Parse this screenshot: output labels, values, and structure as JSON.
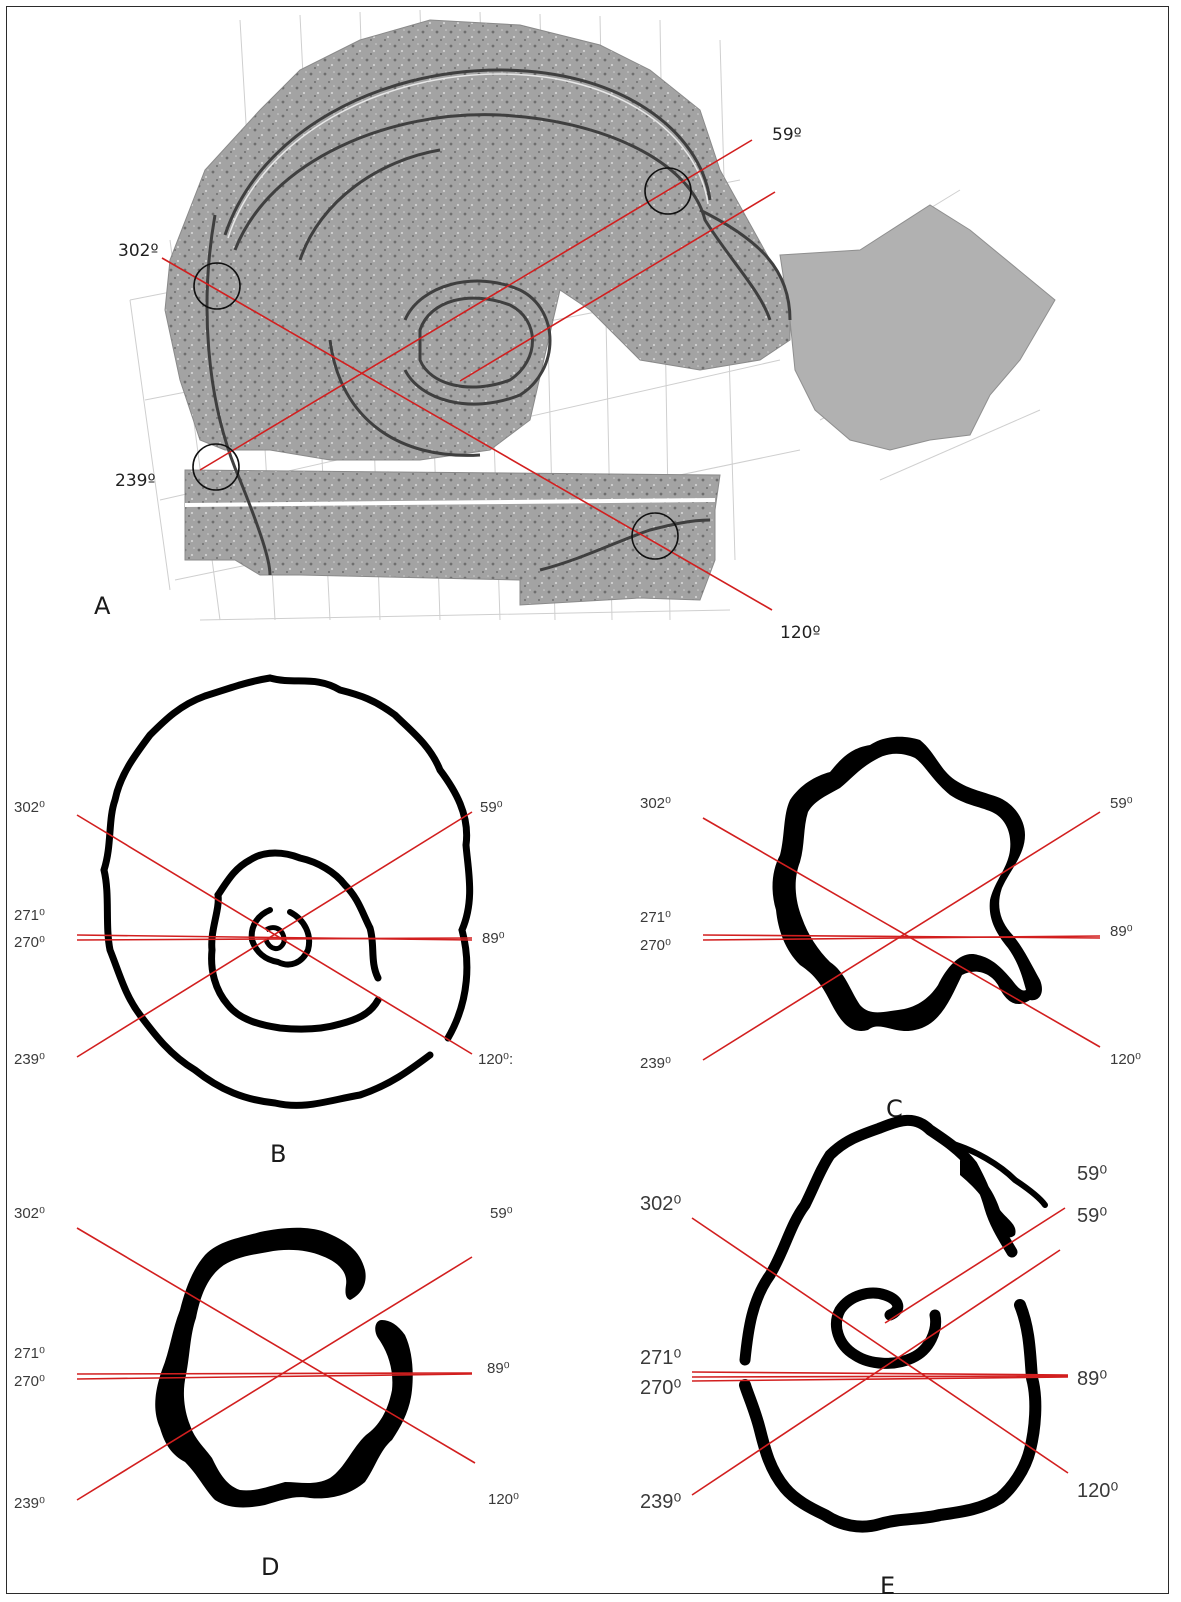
{
  "colors": {
    "axis_line": "#d21f1f",
    "ditch": "#000000",
    "survey_gray": "#9a9a9a",
    "frame": "#2b2b2b"
  },
  "panels": {
    "A": {
      "label": "A",
      "angles": {
        "a302": "302º",
        "a59": "59º",
        "a239": "239º",
        "a120": "120º"
      }
    },
    "B": {
      "label": "B",
      "angles": {
        "a302": "302⁰",
        "a59": "59⁰",
        "a271": "271⁰",
        "a270": "270⁰",
        "a89": "89⁰",
        "a239": "239⁰",
        "a120": "120⁰:"
      }
    },
    "C": {
      "label": "C",
      "angles": {
        "a302": "302⁰",
        "a59": "59⁰",
        "a271": "271⁰",
        "a270": "270⁰",
        "a89": "89⁰",
        "a239": "239⁰",
        "a120": "120⁰"
      }
    },
    "D": {
      "label": "D",
      "angles": {
        "a302": "302⁰",
        "a59": "59⁰",
        "a271": "271⁰",
        "a270": "270⁰",
        "a89": "89⁰",
        "a239": "239⁰",
        "a120": "120⁰"
      }
    },
    "E": {
      "label": "E",
      "angles": {
        "a302": "302⁰",
        "a59a": "59⁰",
        "a59b": "59⁰",
        "a271": "271⁰",
        "a270": "270⁰",
        "a89": "89⁰",
        "a239": "239⁰",
        "a120": "120⁰"
      }
    }
  }
}
